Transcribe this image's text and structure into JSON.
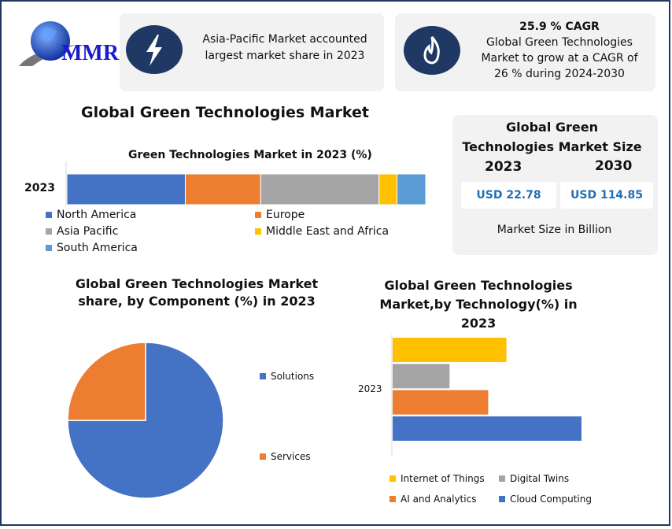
{
  "logo": {
    "text": "MMR"
  },
  "cards": [
    {
      "icon": "lightning-icon",
      "text_line1": "Asia-Pacific Market accounted",
      "text_line2": "largest market share in 2023"
    },
    {
      "icon": "flame-icon",
      "title": "25.9 % CAGR",
      "text_line1": "Global Green Technologies",
      "text_line2": "Market to grow at a CAGR of",
      "text_line3": "26 % during 2024-2030"
    }
  ],
  "main_title": "Global Green Technologies Market",
  "market_size": {
    "title_line1": "Global Green",
    "title_line2": "Technologies Market Size",
    "year1": "2023",
    "year2": "2030",
    "value1": "USD 22.78",
    "value2": "USD 114.85",
    "footer": "Market Size in Billion"
  },
  "colors": {
    "navy": "#1f3864",
    "blue": "#4472c4",
    "orange": "#ed7d31",
    "gray": "#a5a5a5",
    "yellow": "#ffc000",
    "lightblue": "#5b9bd5"
  },
  "chart_data": [
    {
      "type": "bar",
      "stacked": true,
      "orientation": "horizontal",
      "title": "Green Technologies Market in 2023 (%)",
      "categories": [
        "2023"
      ],
      "series": [
        {
          "name": "North America",
          "values": [
            33
          ],
          "color": "#4472c4"
        },
        {
          "name": "Europe",
          "values": [
            21
          ],
          "color": "#ed7d31"
        },
        {
          "name": "Asia Pacific",
          "values": [
            33
          ],
          "color": "#a5a5a5"
        },
        {
          "name": "Middle East and Africa",
          "values": [
            5
          ],
          "color": "#ffc000"
        },
        {
          "name": "South America",
          "values": [
            8
          ],
          "color": "#5b9bd5"
        }
      ],
      "xlim": [
        0,
        100
      ],
      "legend": "bottom"
    },
    {
      "type": "pie",
      "title_line1": "Global Green Technologies Market",
      "title_line2": "share, by Component (%) in 2023",
      "slices": [
        {
          "name": "Solutions",
          "value": 75,
          "color": "#4472c4"
        },
        {
          "name": "Services",
          "value": 25,
          "color": "#ed7d31"
        }
      ],
      "legend": "right"
    },
    {
      "type": "bar",
      "orientation": "horizontal",
      "title_line1": "Global Green Technologies",
      "title_line2": "Market,by Technology(%) in",
      "title_line3": "2023",
      "categories": [
        "2023"
      ],
      "series": [
        {
          "name": "Internet of Things",
          "values": [
            25
          ],
          "color": "#ffc000"
        },
        {
          "name": "Digital Twins",
          "values": [
            12.5
          ],
          "color": "#a5a5a5"
        },
        {
          "name": "AI and Analytics",
          "values": [
            21
          ],
          "color": "#ed7d31"
        },
        {
          "name": "Cloud Computing",
          "values": [
            41.5
          ],
          "color": "#4472c4"
        }
      ],
      "legend": "bottom"
    }
  ]
}
